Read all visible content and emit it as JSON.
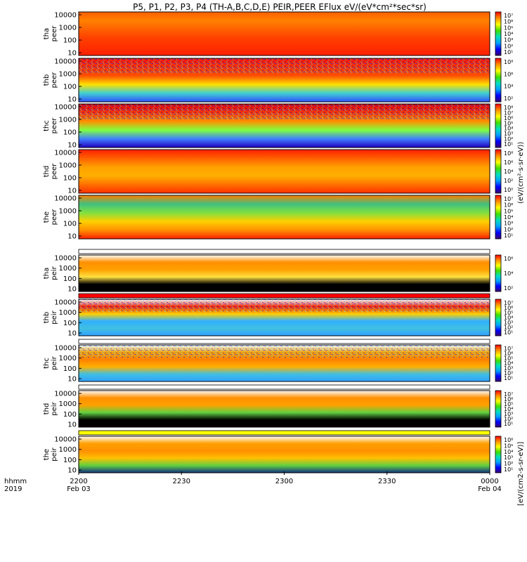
{
  "title": "P5, P1, P2, P3, P4 (TH-A,B,C,D,E) PEIR,PEER EFlux eV/(eV*cm²*sec*sr)",
  "chart_data": {
    "type": "heatmap",
    "x_axis": {
      "corner_labels": [
        "hhmm",
        "2019"
      ],
      "ticks": [
        {
          "value": "2200",
          "sub": "Feb 03"
        },
        {
          "value": "2230",
          "sub": ""
        },
        {
          "value": "2300",
          "sub": ""
        },
        {
          "value": "2330",
          "sub": ""
        },
        {
          "value": "0000",
          "sub": "Feb 04"
        }
      ]
    },
    "y_ticks": [
      "10000",
      "1000",
      "100",
      "10"
    ],
    "colorbar_label": "[eV/(cm2-s-sr-eV)]",
    "colorbar_label_peer": "(eV/(cm²·s·sr·eV))",
    "colormap": [
      "#3a0070",
      "#0000ff",
      "#00a0ff",
      "#00e0c0",
      "#40e000",
      "#ffff00",
      "#ff9000",
      "#ff0000"
    ],
    "panels": [
      {
        "probe": "tha",
        "species": "peer",
        "cbar_ticks": [
          "10⁷",
          "10⁶",
          "10⁵",
          "10⁴",
          "10³",
          "10²",
          "10¹"
        ]
      },
      {
        "probe": "thb",
        "species": "peer",
        "cbar_ticks": [
          "10⁸",
          "10⁶",
          "10⁴",
          "10²"
        ]
      },
      {
        "probe": "thc",
        "species": "peer",
        "cbar_ticks": [
          "10⁸",
          "10⁷",
          "10⁶",
          "10⁵",
          "10⁴",
          "10³",
          "10²",
          "10¹"
        ]
      },
      {
        "probe": "thd",
        "species": "peer",
        "cbar_ticks": [
          "10⁸",
          "10⁶",
          "10⁴",
          "10²",
          "10⁰"
        ]
      },
      {
        "probe": "the",
        "species": "peer",
        "cbar_ticks": [
          "10⁷",
          "10⁶",
          "10⁵",
          "10⁴",
          "10³",
          "10²",
          "10¹"
        ]
      },
      {
        "probe": "tha",
        "species": "peir",
        "cbar_ticks": [
          "10⁶",
          "10⁴",
          "10²"
        ]
      },
      {
        "probe": "thb",
        "species": "peir",
        "cbar_ticks": [
          "10⁷",
          "10⁶",
          "10⁵",
          "10⁴",
          "10³",
          "10²",
          "10¹"
        ]
      },
      {
        "probe": "thc",
        "species": "peir",
        "cbar_ticks": [
          "10⁷",
          "10⁶",
          "10⁵",
          "10⁴",
          "10³",
          "10²",
          "10¹"
        ]
      },
      {
        "probe": "thd",
        "species": "peir",
        "cbar_ticks": [
          "10⁷",
          "10⁶",
          "10⁵",
          "10⁴",
          "10³",
          "10²",
          "10¹"
        ]
      },
      {
        "probe": "the",
        "species": "peir",
        "cbar_ticks": [
          "10⁶",
          "10⁵",
          "10⁴",
          "10³",
          "10²",
          "10¹"
        ]
      }
    ]
  }
}
